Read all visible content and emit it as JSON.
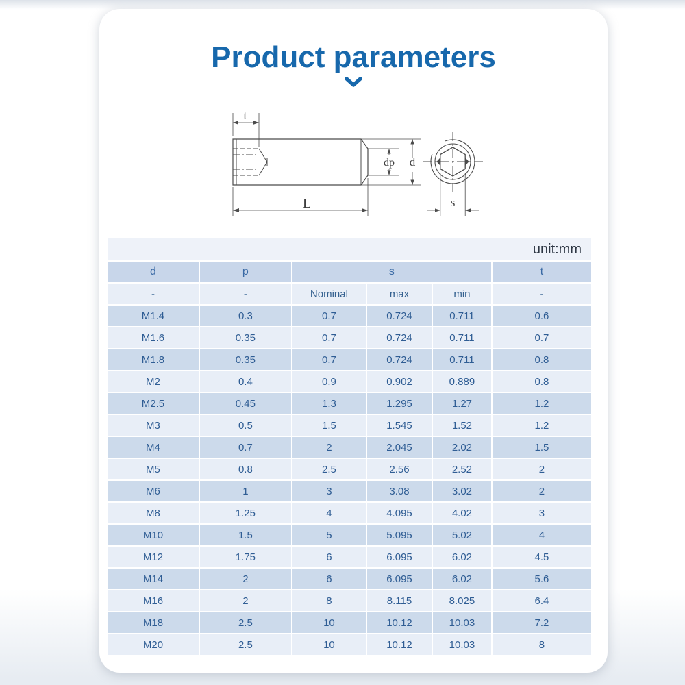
{
  "page": {
    "title": "Product parameters"
  },
  "drawing": {
    "labels": {
      "t": "t",
      "L": "L",
      "dp": "dp",
      "d": "d",
      "s": "s"
    }
  },
  "table": {
    "unit_label": "unit:mm",
    "columns": [
      "d",
      "p",
      "s",
      "t"
    ],
    "subcolumns": [
      "-",
      "-",
      "Nominal",
      "max",
      "min",
      "-"
    ],
    "rows": [
      [
        "M1.4",
        "0.3",
        "0.7",
        "0.724",
        "0.711",
        "0.6"
      ],
      [
        "M1.6",
        "0.35",
        "0.7",
        "0.724",
        "0.711",
        "0.7"
      ],
      [
        "M1.8",
        "0.35",
        "0.7",
        "0.724",
        "0.711",
        "0.8"
      ],
      [
        "M2",
        "0.4",
        "0.9",
        "0.902",
        "0.889",
        "0.8"
      ],
      [
        "M2.5",
        "0.45",
        "1.3",
        "1.295",
        "1.27",
        "1.2"
      ],
      [
        "M3",
        "0.5",
        "1.5",
        "1.545",
        "1.52",
        "1.2"
      ],
      [
        "M4",
        "0.7",
        "2",
        "2.045",
        "2.02",
        "1.5"
      ],
      [
        "M5",
        "0.8",
        "2.5",
        "2.56",
        "2.52",
        "2"
      ],
      [
        "M6",
        "1",
        "3",
        "3.08",
        "3.02",
        "2"
      ],
      [
        "M8",
        "1.25",
        "4",
        "4.095",
        "4.02",
        "3"
      ],
      [
        "M10",
        "1.5",
        "5",
        "5.095",
        "5.02",
        "4"
      ],
      [
        "M12",
        "1.75",
        "6",
        "6.095",
        "6.02",
        "4.5"
      ],
      [
        "M14",
        "2",
        "6",
        "6.095",
        "6.02",
        "5.6"
      ],
      [
        "M16",
        "2",
        "8",
        "8.115",
        "8.025",
        "6.4"
      ],
      [
        "M18",
        "2.5",
        "10",
        "10.12",
        "10.03",
        "7.2"
      ],
      [
        "M20",
        "2.5",
        "10",
        "10.12",
        "10.03",
        "8"
      ]
    ]
  },
  "colors": {
    "accent_blue": "#1768ac",
    "header_row_bg": "#c8d6ea",
    "row_dark_bg": "#ccdaeb",
    "row_light_bg": "#e8eef7",
    "table_text": "#2f5d94",
    "unit_text": "#2e3744",
    "drawing_line": "#4b4b4b"
  }
}
